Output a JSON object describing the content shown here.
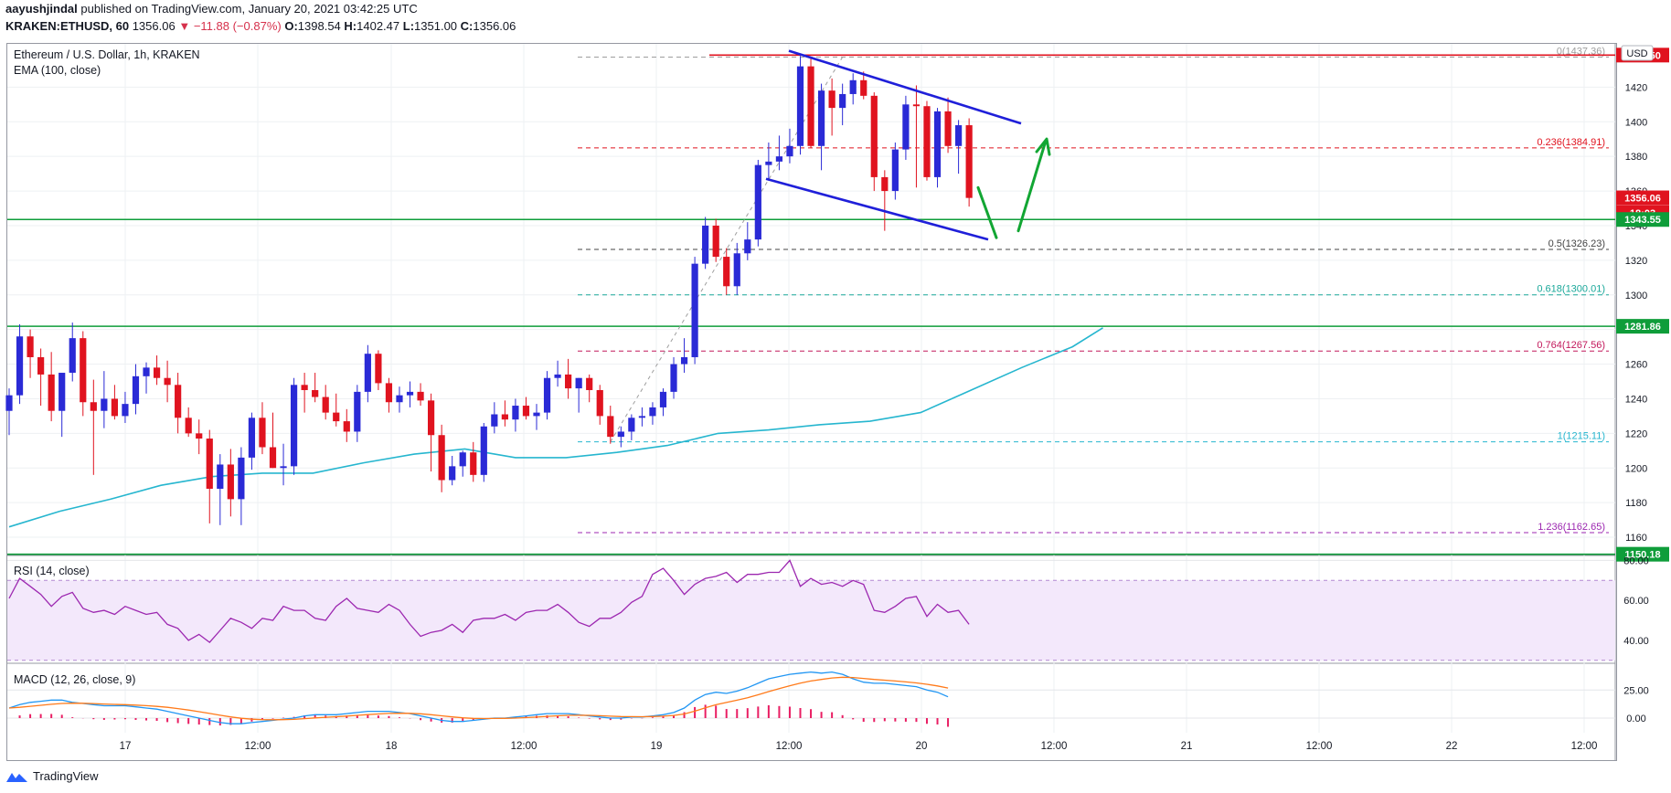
{
  "header": {
    "publisher": "aayushjindal",
    "published_text": "published on TradingView.com, January 20, 2021 03:42:25 UTC",
    "symbol": "KRAKEN:ETHUSD, 60",
    "last": "1356.06",
    "change": "−11.88 (−0.87%)",
    "change_arrow": "▼",
    "o_label": "O:",
    "o_value": "1398.54",
    "h_label": "H:",
    "h_value": "1402.47",
    "l_label": "L:",
    "l_value": "1351.00",
    "c_label": "C:",
    "c_value": "1356.06"
  },
  "main_pane": {
    "title": "Ethereum / U.S. Dollar, 1h, KRAKEN",
    "indicator": "EMA (100, close)",
    "currency_button": "USD"
  },
  "rsi_pane": {
    "title": "RSI (14, close)"
  },
  "macd_pane": {
    "title": "MACD (12, 26, close, 9)"
  },
  "footer": {
    "brand": "TradingView"
  },
  "colors": {
    "up": "#2a2ad6",
    "down": "#e0131f",
    "ema": "#26b6cf",
    "support": "#0f9d3a",
    "channel": "#1f1fd9",
    "arrow": "#12a633",
    "rsi": "#9c27b0",
    "macd": "#2196f3",
    "signal": "#ff7a1a",
    "hist": "#e91e63"
  },
  "chart_data": [
    {
      "type": "candlestick",
      "ylim": [
        1150,
        1445
      ],
      "y_ticks": [
        1160,
        1180,
        1200,
        1220,
        1240,
        1260,
        1280,
        1300,
        1320,
        1340,
        1360,
        1380,
        1400,
        1420
      ],
      "x_tick_labels": [
        "17",
        "12:00",
        "18",
        "12:00",
        "19",
        "12:00",
        "20",
        "12:00",
        "21",
        "12:00",
        "22",
        "12:00"
      ],
      "price_tags": [
        {
          "text": "1438.50",
          "value": 1438.5,
          "color": "#e0131f"
        },
        {
          "text": "1356.06",
          "value": 1356.06,
          "color": "#e0131f"
        },
        {
          "text": "18:03",
          "value": 1347.5,
          "color": "#e0131f"
        },
        {
          "text": "1343.55",
          "value": 1343.55,
          "color": "#0f9d3a"
        },
        {
          "text": "1281.86",
          "value": 1281.86,
          "color": "#0f9d3a"
        },
        {
          "text": "1150.18",
          "value": 1150.18,
          "color": "#0f9d3a"
        }
      ],
      "fib_levels": [
        {
          "label": "0(1437.36)",
          "value": 1437.36,
          "color": "#9e9e9e"
        },
        {
          "label": "0.236(1384.91)",
          "value": 1384.91,
          "color": "#e0131f"
        },
        {
          "label": "0.5(1326.23)",
          "value": 1326.23,
          "color": "#444444"
        },
        {
          "label": "0.618(1300.01)",
          "value": 1300.01,
          "color": "#1aa89a"
        },
        {
          "label": "0.764(1267.56)",
          "value": 1267.56,
          "color": "#c2185b"
        },
        {
          "label": "1(1215.11)",
          "value": 1215.11,
          "color": "#26b6cf"
        },
        {
          "label": "1.236(1162.65)",
          "value": 1162.65,
          "color": "#9c27b0"
        }
      ],
      "horizontal_lines": [
        {
          "value": 1438.5,
          "color": "#e0131f"
        },
        {
          "value": 1343.55,
          "color": "#0f9d3a"
        },
        {
          "value": 1281.86,
          "color": "#0f9d3a"
        },
        {
          "value": 1150.18,
          "color": "#0f9d3a"
        }
      ],
      "candles_ohlc": [
        [
          1233,
          1246,
          1219,
          1242
        ],
        [
          1242,
          1283,
          1237,
          1276
        ],
        [
          1276,
          1280,
          1252,
          1264
        ],
        [
          1264,
          1269,
          1236,
          1254
        ],
        [
          1254,
          1267,
          1227,
          1233
        ],
        [
          1233,
          1248,
          1218,
          1255
        ],
        [
          1255,
          1284,
          1250,
          1275
        ],
        [
          1275,
          1279,
          1230,
          1238
        ],
        [
          1238,
          1251,
          1196,
          1233
        ],
        [
          1233,
          1256,
          1223,
          1240
        ],
        [
          1240,
          1248,
          1228,
          1230
        ],
        [
          1230,
          1244,
          1226,
          1237
        ],
        [
          1237,
          1260,
          1231,
          1253
        ],
        [
          1253,
          1261,
          1243,
          1258
        ],
        [
          1258,
          1265,
          1248,
          1252
        ],
        [
          1252,
          1262,
          1238,
          1248
        ],
        [
          1248,
          1255,
          1220,
          1229
        ],
        [
          1229,
          1235,
          1218,
          1220
        ],
        [
          1220,
          1228,
          1208,
          1217
        ],
        [
          1217,
          1222,
          1168,
          1188
        ],
        [
          1188,
          1208,
          1167,
          1202
        ],
        [
          1202,
          1211,
          1172,
          1182
        ],
        [
          1182,
          1212,
          1167,
          1206
        ],
        [
          1206,
          1232,
          1199,
          1229
        ],
        [
          1229,
          1238,
          1208,
          1212
        ],
        [
          1212,
          1232,
          1200,
          1200
        ],
        [
          1200,
          1214,
          1190,
          1201
        ],
        [
          1201,
          1252,
          1196,
          1248
        ],
        [
          1248,
          1255,
          1232,
          1245
        ],
        [
          1245,
          1255,
          1238,
          1241
        ],
        [
          1241,
          1248,
          1228,
          1232
        ],
        [
          1232,
          1243,
          1224,
          1227
        ],
        [
          1227,
          1234,
          1215,
          1221
        ],
        [
          1221,
          1248,
          1215,
          1244
        ],
        [
          1244,
          1271,
          1238,
          1266
        ],
        [
          1266,
          1268,
          1245,
          1249
        ],
        [
          1249,
          1252,
          1232,
          1238
        ],
        [
          1238,
          1247,
          1232,
          1242
        ],
        [
          1242,
          1250,
          1235,
          1244
        ],
        [
          1244,
          1249,
          1236,
          1239
        ],
        [
          1239,
          1243,
          1198,
          1219
        ],
        [
          1219,
          1225,
          1186,
          1193
        ],
        [
          1193,
          1207,
          1190,
          1201
        ],
        [
          1201,
          1210,
          1195,
          1209
        ],
        [
          1209,
          1215,
          1192,
          1196
        ],
        [
          1196,
          1226,
          1192,
          1224
        ],
        [
          1224,
          1238,
          1220,
          1231
        ],
        [
          1231,
          1239,
          1224,
          1228
        ],
        [
          1228,
          1240,
          1221,
          1236
        ],
        [
          1236,
          1241,
          1228,
          1230
        ],
        [
          1230,
          1237,
          1222,
          1232
        ],
        [
          1232,
          1256,
          1228,
          1252
        ],
        [
          1252,
          1262,
          1247,
          1254
        ],
        [
          1254,
          1263,
          1240,
          1246
        ],
        [
          1246,
          1252,
          1232,
          1252
        ],
        [
          1252,
          1254,
          1238,
          1245
        ],
        [
          1245,
          1248,
          1225,
          1230
        ],
        [
          1230,
          1236,
          1214,
          1218
        ],
        [
          1218,
          1224,
          1212,
          1221
        ],
        [
          1221,
          1231,
          1216,
          1229
        ],
        [
          1229,
          1235,
          1224,
          1230
        ],
        [
          1230,
          1238,
          1225,
          1235
        ],
        [
          1235,
          1246,
          1230,
          1244
        ],
        [
          1244,
          1264,
          1240,
          1260
        ],
        [
          1260,
          1275,
          1255,
          1264
        ],
        [
          1264,
          1322,
          1260,
          1318
        ],
        [
          1318,
          1345,
          1315,
          1340
        ],
        [
          1340,
          1344,
          1319,
          1322
        ],
        [
          1322,
          1327,
          1300,
          1305
        ],
        [
          1305,
          1330,
          1300,
          1324
        ],
        [
          1324,
          1342,
          1320,
          1332
        ],
        [
          1332,
          1378,
          1328,
          1375
        ],
        [
          1375,
          1388,
          1366,
          1377
        ],
        [
          1377,
          1392,
          1372,
          1380
        ],
        [
          1380,
          1396,
          1376,
          1386
        ],
        [
          1386,
          1438,
          1381,
          1432
        ],
        [
          1432,
          1437,
          1385,
          1386
        ],
        [
          1386,
          1422,
          1372,
          1418
        ],
        [
          1418,
          1425,
          1392,
          1408
        ],
        [
          1408,
          1422,
          1398,
          1416
        ],
        [
          1416,
          1428,
          1410,
          1424
        ],
        [
          1424,
          1429,
          1413,
          1415
        ],
        [
          1415,
          1417,
          1360,
          1368
        ],
        [
          1368,
          1372,
          1337,
          1360
        ],
        [
          1360,
          1388,
          1355,
          1384
        ],
        [
          1384,
          1415,
          1378,
          1410
        ],
        [
          1410,
          1421,
          1362,
          1409
        ],
        [
          1409,
          1412,
          1366,
          1368
        ],
        [
          1368,
          1408,
          1362,
          1406
        ],
        [
          1406,
          1414,
          1382,
          1386
        ],
        [
          1386,
          1401,
          1370,
          1398
        ],
        [
          1398,
          1402,
          1351,
          1356
        ]
      ],
      "ema100_points": [
        [
          0,
          1166
        ],
        [
          0.05,
          1175
        ],
        [
          0.1,
          1182
        ],
        [
          0.15,
          1190
        ],
        [
          0.2,
          1195
        ],
        [
          0.25,
          1197
        ],
        [
          0.3,
          1197
        ],
        [
          0.35,
          1203
        ],
        [
          0.4,
          1208
        ],
        [
          0.45,
          1211
        ],
        [
          0.5,
          1206
        ],
        [
          0.55,
          1206
        ],
        [
          0.6,
          1209
        ],
        [
          0.65,
          1213
        ],
        [
          0.7,
          1220
        ],
        [
          0.75,
          1222
        ],
        [
          0.8,
          1225
        ],
        [
          0.85,
          1227
        ],
        [
          0.9,
          1232
        ],
        [
          0.95,
          1245
        ],
        [
          1.0,
          1258
        ],
        [
          1.05,
          1270
        ],
        [
          1.08,
          1281
        ]
      ]
    },
    {
      "type": "line",
      "name": "RSI (14, close)",
      "ylim": [
        29,
        82
      ],
      "y_ticks": [
        40,
        60,
        80
      ],
      "band": [
        30,
        70
      ],
      "values": [
        61,
        71,
        67,
        63,
        57,
        62,
        64,
        56,
        54,
        55,
        53,
        57,
        55,
        53,
        54,
        48,
        46,
        40,
        43,
        39,
        45,
        51,
        49,
        46,
        51,
        50,
        57,
        55,
        55,
        51,
        50,
        57,
        61,
        56,
        55,
        54,
        58,
        55,
        48,
        42,
        44,
        45,
        48,
        44,
        50,
        51,
        51,
        53,
        50,
        54,
        55,
        55,
        58,
        54,
        49,
        47,
        51,
        51,
        54,
        59,
        62,
        73,
        76,
        70,
        63,
        68,
        71,
        72,
        74,
        69,
        73,
        73,
        74,
        74,
        80,
        67,
        71,
        68,
        69,
        67,
        70,
        68,
        55,
        54,
        57,
        61,
        62,
        52,
        58,
        54,
        55,
        48
      ]
    },
    {
      "type": "line",
      "name": "MACD (12, 26, close, 9)",
      "ylim": [
        -13,
        48
      ],
      "y_ticks": [
        0.0,
        25.0
      ],
      "macd": [
        9,
        12,
        14,
        15,
        16,
        16,
        14,
        13,
        12,
        11,
        11,
        11,
        10,
        9,
        8,
        6,
        4,
        2,
        0,
        -2,
        -4,
        -5,
        -5,
        -4,
        -3,
        -2,
        -1,
        0,
        2,
        3,
        3,
        3,
        4,
        5,
        6,
        6,
        6,
        5,
        4,
        2,
        0,
        -2,
        -3,
        -3,
        -2,
        -1,
        0,
        0,
        1,
        2,
        3,
        4,
        4,
        4,
        3,
        2,
        1,
        0,
        0,
        1,
        1,
        2,
        3,
        5,
        9,
        16,
        21,
        23,
        22,
        24,
        27,
        31,
        35,
        37,
        39,
        40,
        41,
        40,
        41,
        39,
        35,
        32,
        31,
        31,
        30,
        29,
        28,
        25,
        23,
        19
      ]
    }
  ]
}
